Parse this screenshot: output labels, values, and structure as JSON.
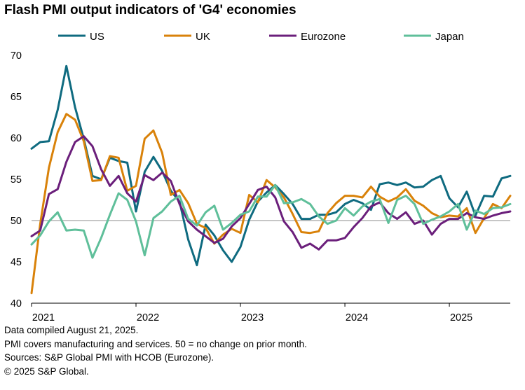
{
  "title": "Flash PMI output indicators of 'G4' economies",
  "notes": [
    "Data compiled August 21, 2025.",
    "PMI covers manufacturing and services. 50 = no change on prior month.",
    "Sources: S&P Global PMI with HCOB (Eurozone).",
    "© 2025 S&P Global."
  ],
  "chart_data": {
    "type": "line",
    "title": "Flash PMI output indicators of 'G4' economies",
    "xlabel": "",
    "ylabel": "",
    "ylim": [
      40,
      70
    ],
    "yticks": [
      40,
      45,
      50,
      55,
      60,
      65,
      70
    ],
    "xlim": [
      "2021-01",
      "2025-08"
    ],
    "x_tick_labels": [
      "2021",
      "2022",
      "2023",
      "2024",
      "2025"
    ],
    "reference_line": 50,
    "grid": false,
    "legend_position": "top",
    "x": [
      "2021-01",
      "2021-02",
      "2021-03",
      "2021-04",
      "2021-05",
      "2021-06",
      "2021-07",
      "2021-08",
      "2021-09",
      "2021-10",
      "2021-11",
      "2021-12",
      "2022-01",
      "2022-02",
      "2022-03",
      "2022-04",
      "2022-05",
      "2022-06",
      "2022-07",
      "2022-08",
      "2022-09",
      "2022-10",
      "2022-11",
      "2022-12",
      "2023-01",
      "2023-02",
      "2023-03",
      "2023-04",
      "2023-05",
      "2023-06",
      "2023-07",
      "2023-08",
      "2023-09",
      "2023-10",
      "2023-11",
      "2023-12",
      "2024-01",
      "2024-02",
      "2024-03",
      "2024-04",
      "2024-05",
      "2024-06",
      "2024-07",
      "2024-08",
      "2024-09",
      "2024-10",
      "2024-11",
      "2024-12",
      "2025-01",
      "2025-02",
      "2025-03",
      "2025-04",
      "2025-05",
      "2025-06",
      "2025-07",
      "2025-08"
    ],
    "series": [
      {
        "name": "US",
        "color": "#0f6b80",
        "values": [
          58.7,
          59.5,
          59.6,
          63.4,
          68.7,
          63.7,
          59.9,
          55.4,
          55.0,
          57.6,
          57.2,
          57.0,
          51.1,
          55.9,
          57.7,
          56.0,
          53.6,
          52.3,
          47.7,
          44.6,
          49.5,
          48.2,
          46.4,
          45.0,
          46.8,
          50.1,
          52.3,
          53.4,
          54.3,
          53.2,
          52.0,
          50.2,
          50.2,
          50.7,
          50.7,
          51.0,
          52.0,
          52.5,
          52.1,
          51.3,
          54.4,
          54.6,
          54.3,
          54.6,
          54.0,
          54.1,
          54.9,
          55.4,
          52.7,
          51.6,
          53.5,
          50.6,
          53.0,
          52.9,
          55.1,
          55.4
        ]
      },
      {
        "name": "UK",
        "color": "#d9820a",
        "values": [
          41.2,
          49.6,
          56.4,
          60.7,
          62.9,
          62.2,
          59.6,
          54.8,
          54.9,
          57.8,
          57.6,
          53.6,
          54.2,
          59.9,
          60.9,
          58.2,
          53.1,
          53.7,
          52.1,
          49.6,
          49.1,
          47.2,
          48.3,
          49.0,
          48.5,
          53.1,
          52.2,
          54.9,
          54.0,
          52.8,
          50.8,
          48.6,
          48.5,
          48.7,
          50.9,
          52.1,
          53.0,
          53.0,
          52.8,
          54.1,
          52.9,
          52.3,
          52.8,
          53.8,
          52.4,
          51.8,
          50.9,
          50.4,
          50.6,
          50.5,
          51.5,
          48.5,
          50.3,
          52.0,
          51.5,
          53.0
        ]
      },
      {
        "name": "Eurozone",
        "color": "#6b1f7b",
        "values": [
          48.1,
          48.8,
          53.2,
          53.8,
          57.1,
          59.5,
          60.2,
          59.0,
          56.2,
          54.2,
          55.4,
          53.3,
          52.3,
          55.5,
          54.9,
          55.8,
          54.8,
          52.0,
          49.9,
          48.9,
          48.1,
          47.3,
          47.8,
          49.3,
          50.3,
          52.0,
          53.7,
          54.1,
          52.8,
          49.9,
          48.6,
          46.7,
          47.2,
          46.5,
          47.6,
          47.6,
          47.9,
          49.2,
          50.3,
          51.7,
          52.2,
          50.9,
          50.2,
          51.0,
          49.6,
          50.0,
          48.3,
          49.6,
          50.2,
          50.2,
          50.9,
          50.4,
          50.2,
          50.6,
          50.9,
          51.1
        ]
      },
      {
        "name": "Japan",
        "color": "#5fbf9a",
        "values": [
          47.1,
          48.2,
          49.9,
          51.0,
          48.8,
          48.9,
          48.8,
          45.5,
          47.9,
          50.7,
          53.3,
          52.5,
          49.9,
          45.8,
          50.3,
          51.1,
          52.3,
          53.0,
          50.2,
          49.4,
          51.0,
          51.8,
          48.9,
          49.7,
          50.7,
          51.1,
          52.9,
          52.9,
          54.3,
          52.1,
          52.2,
          52.6,
          52.0,
          50.5,
          49.6,
          50.0,
          51.5,
          50.6,
          51.7,
          52.3,
          52.6,
          49.7,
          52.5,
          53.0,
          52.0,
          49.6,
          50.1,
          50.5,
          51.1,
          52.0,
          48.9,
          51.2,
          50.8,
          51.5,
          51.6,
          52.0
        ]
      }
    ]
  }
}
